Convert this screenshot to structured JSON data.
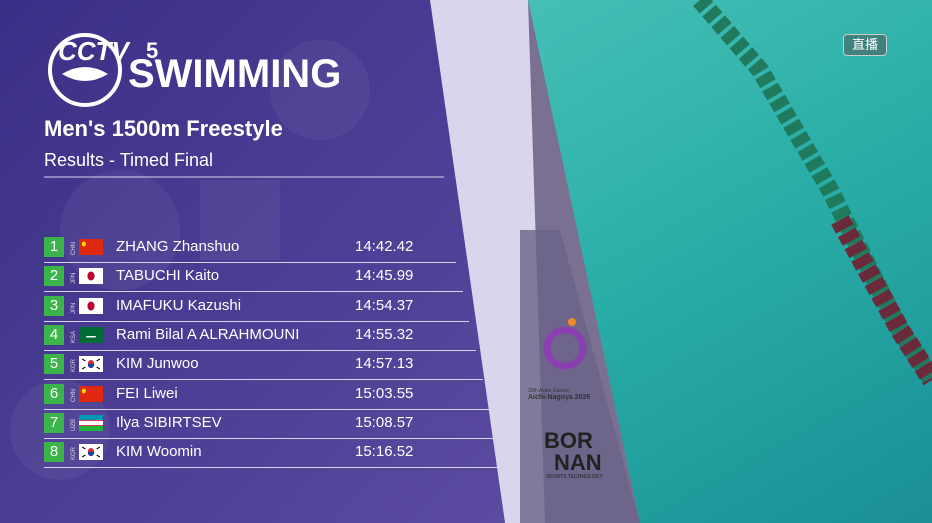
{
  "logo": {
    "channel": "CCTV",
    "channel_number": "5",
    "sport": "SWIMMING"
  },
  "live_badge": "直播",
  "event": {
    "title": "Men's 1500m Freestyle",
    "subtitle": "Results - Timed Final"
  },
  "results": [
    {
      "rank": 1,
      "country": "CHN",
      "name": "ZHANG Zhanshuo",
      "time": "14:42.42"
    },
    {
      "rank": 2,
      "country": "JPN",
      "name": "TABUCHI Kaito",
      "time": "14:45.99"
    },
    {
      "rank": 3,
      "country": "JPN",
      "name": "IMAFUKU Kazushi",
      "time": "14:54.37"
    },
    {
      "rank": 4,
      "country": "KSA",
      "name": "Rami Bilal A ALRAHMOUNI",
      "time": "14:55.32"
    },
    {
      "rank": 5,
      "country": "KOR",
      "name": "KIM Junwoo",
      "time": "14:57.13"
    },
    {
      "rank": 6,
      "country": "CHN",
      "name": "FEI Liwei",
      "time": "15:03.55"
    },
    {
      "rank": 7,
      "country": "UZB",
      "name": "Ilya SIBIRTSEV",
      "time": "15:08.57"
    },
    {
      "rank": 8,
      "country": "KOR",
      "name": "KIM Woomin",
      "time": "15:16.52"
    }
  ],
  "sponsors": {
    "games_line1": "20th Asian Games",
    "games_line2": "Aichi-Nagoya 2026",
    "tech_line1": "BOR",
    "tech_line2": "NAN",
    "tech_line3": "SPORTS TECHNOLOGY"
  }
}
